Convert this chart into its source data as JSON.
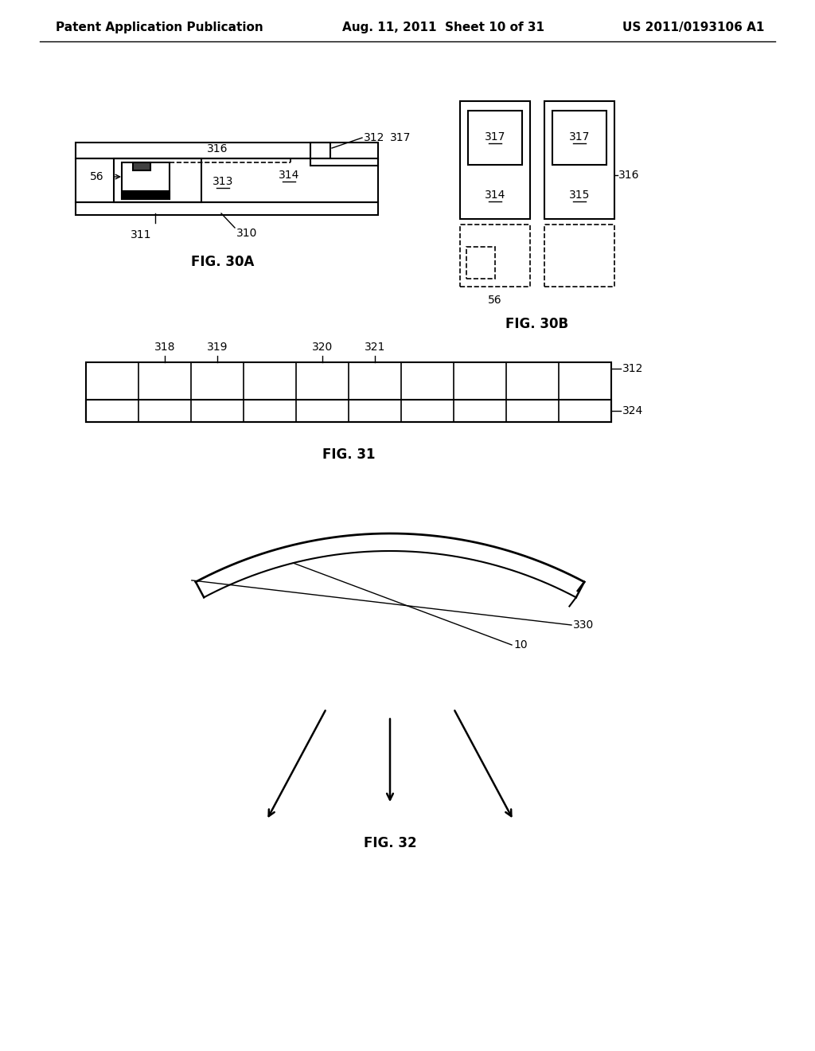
{
  "header_left": "Patent Application Publication",
  "header_center": "Aug. 11, 2011  Sheet 10 of 31",
  "header_right": "US 2011/0193106 A1",
  "fig30a_label": "FIG. 30A",
  "fig30b_label": "FIG. 30B",
  "fig31_label": "FIG. 31",
  "fig32_label": "FIG. 32",
  "bg_color": "#ffffff",
  "line_color": "#000000",
  "font_size_header": 11,
  "font_size_label": 12,
  "font_size_ref": 10
}
